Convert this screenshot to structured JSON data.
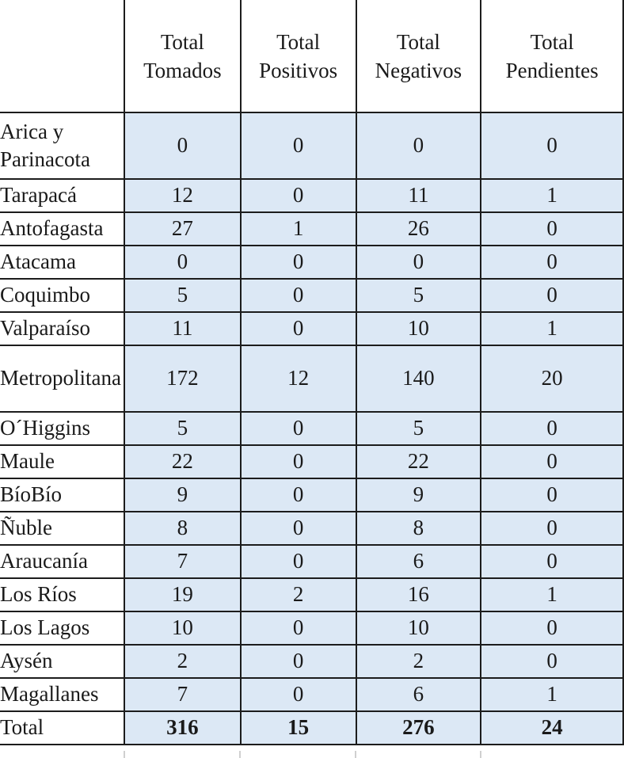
{
  "headers": {
    "tomados": [
      "Total",
      "Tomados"
    ],
    "positivos": [
      "Total",
      "Positivos"
    ],
    "negativos": [
      "Total",
      "Negativos"
    ],
    "pendientes": [
      "Total",
      "Pendientes"
    ]
  },
  "rows": [
    {
      "region": [
        "Arica y",
        "Parinacota"
      ],
      "tomados": "0",
      "positivos": "0",
      "negativos": "0",
      "pendientes": "0"
    },
    {
      "region": [
        "Tarapacá"
      ],
      "tomados": "12",
      "positivos": "0",
      "negativos": "11",
      "pendientes": "1"
    },
    {
      "region": [
        "Antofagasta"
      ],
      "tomados": "27",
      "positivos": "1",
      "negativos": "26",
      "pendientes": "0"
    },
    {
      "region": [
        "Atacama"
      ],
      "tomados": "0",
      "positivos": "0",
      "negativos": "0",
      "pendientes": "0"
    },
    {
      "region": [
        "Coquimbo"
      ],
      "tomados": "5",
      "positivos": "0",
      "negativos": "5",
      "pendientes": "0"
    },
    {
      "region": [
        "Valparaíso"
      ],
      "tomados": "11",
      "positivos": "0",
      "negativos": "10",
      "pendientes": "1"
    },
    {
      "region": [
        "Metropolitana"
      ],
      "tomados": "172",
      "positivos": "12",
      "negativos": "140",
      "pendientes": "20"
    },
    {
      "region": [
        "O´Higgins"
      ],
      "tomados": "5",
      "positivos": "0",
      "negativos": "5",
      "pendientes": "0"
    },
    {
      "region": [
        "Maule"
      ],
      "tomados": "22",
      "positivos": "0",
      "negativos": "22",
      "pendientes": "0"
    },
    {
      "region": [
        "BíoBío"
      ],
      "tomados": "9",
      "positivos": "0",
      "negativos": "9",
      "pendientes": "0"
    },
    {
      "region": [
        "Ñuble"
      ],
      "tomados": "8",
      "positivos": "0",
      "negativos": "8",
      "pendientes": "0"
    },
    {
      "region": [
        "Araucanía"
      ],
      "tomados": "7",
      "positivos": "0",
      "negativos": "6",
      "pendientes": "0"
    },
    {
      "region": [
        "Los Ríos"
      ],
      "tomados": "19",
      "positivos": "2",
      "negativos": "16",
      "pendientes": "1"
    },
    {
      "region": [
        "Los Lagos"
      ],
      "tomados": "10",
      "positivos": "0",
      "negativos": "10",
      "pendientes": "0"
    },
    {
      "region": [
        "Aysén"
      ],
      "tomados": "2",
      "positivos": "0",
      "negativos": "2",
      "pendientes": "0"
    },
    {
      "region": [
        "Magallanes"
      ],
      "tomados": "7",
      "positivos": "0",
      "negativos": "6",
      "pendientes": "1"
    }
  ],
  "total": {
    "label": "Total",
    "tomados": "316",
    "positivos": "15",
    "negativos": "276",
    "pendientes": "24"
  },
  "colors": {
    "cell_fill": "#dce8f5",
    "border": "#1c1c1c",
    "text": "#1a1a1a"
  }
}
